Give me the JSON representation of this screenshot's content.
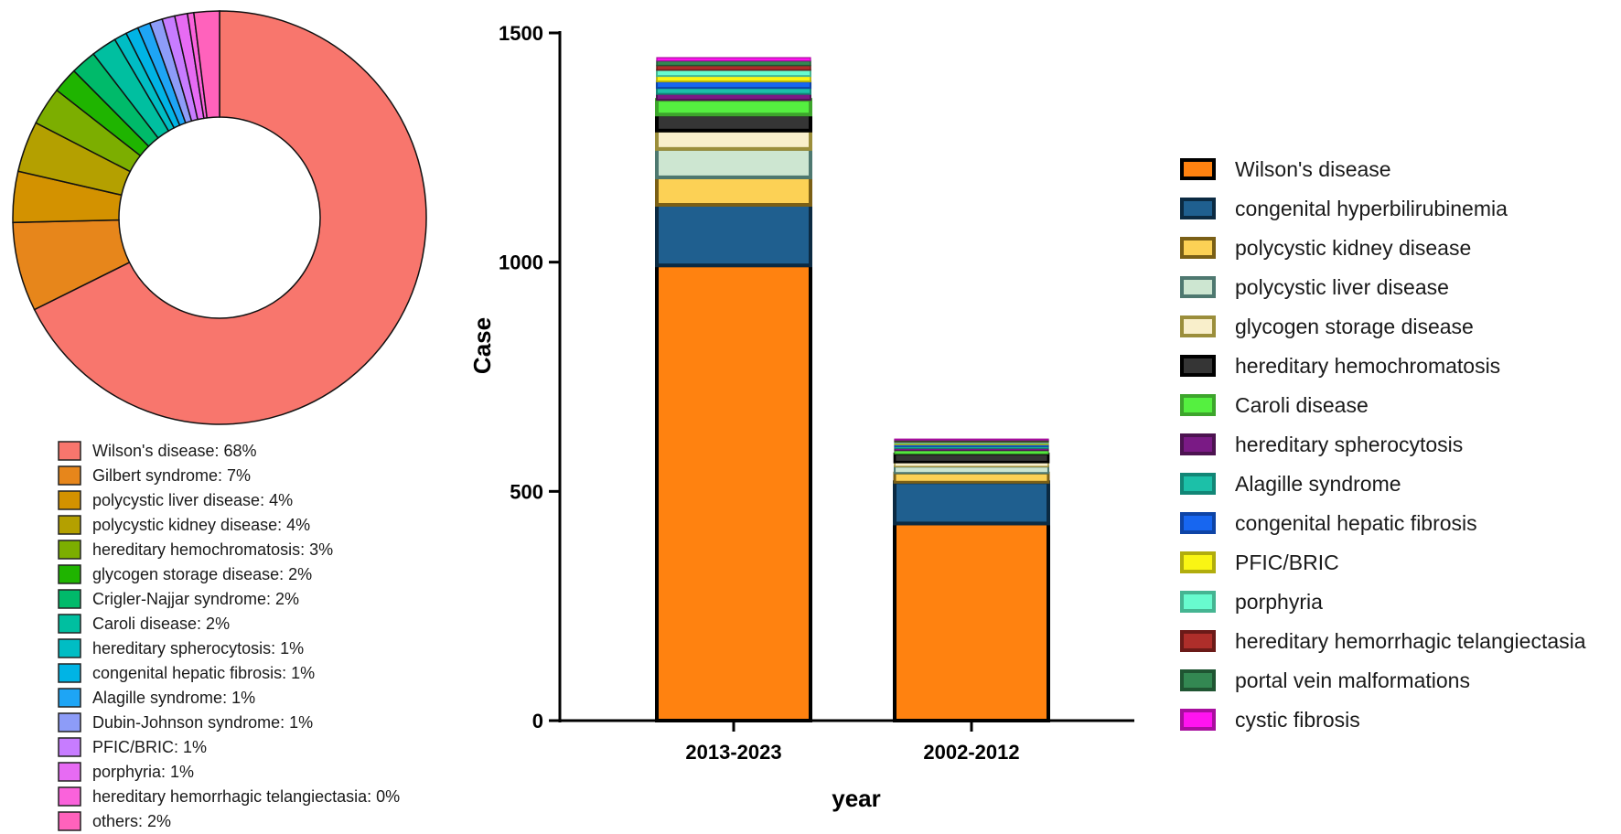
{
  "chart_data": [
    {
      "type": "pie",
      "donut": true,
      "slices": [
        {
          "label": "Wilson's disease: 68%",
          "value": 68,
          "color": "#F8766D"
        },
        {
          "label": "Gilbert syndrome: 7%",
          "value": 7,
          "color": "#E7861B"
        },
        {
          "label": "polycystic liver disease: 4%",
          "value": 4,
          "color": "#D39200"
        },
        {
          "label": "polycystic kidney disease: 4%",
          "value": 4,
          "color": "#B4A000"
        },
        {
          "label": "hereditary hemochromatosis: 3%",
          "value": 3,
          "color": "#7CAE00"
        },
        {
          "label": "glycogen storage disease: 2%",
          "value": 2,
          "color": "#1FB400"
        },
        {
          "label": "Crigler-Najjar syndrome: 2%",
          "value": 2,
          "color": "#00BA6A"
        },
        {
          "label": "Caroli disease: 2%",
          "value": 2,
          "color": "#00BFA0"
        },
        {
          "label": "hereditary spherocytosis: 1%",
          "value": 1,
          "color": "#00BDC4"
        },
        {
          "label": "congenital hepatic fibrosis: 1%",
          "value": 1,
          "color": "#00B4E5"
        },
        {
          "label": "Alagille syndrome: 1%",
          "value": 1,
          "color": "#1EA5F5"
        },
        {
          "label": "Dubin-Johnson syndrome: 1%",
          "value": 1,
          "color": "#8D9CF8"
        },
        {
          "label": "PFIC/BRIC: 1%",
          "value": 1,
          "color": "#C77CFF"
        },
        {
          "label": "porphyria: 1%",
          "value": 1,
          "color": "#E76BF3"
        },
        {
          "label": "hereditary hemorrhagic telangiectasia: 0%",
          "value": 0.5,
          "color": "#FA62DB"
        },
        {
          "label": "others: 2%",
          "value": 2,
          "color": "#FF62BC"
        }
      ]
    },
    {
      "type": "bar",
      "stacked": true,
      "categories": [
        "2013-2023",
        "2002-2012"
      ],
      "xlabel": "year",
      "ylabel": "Case",
      "ylim": [
        0,
        1500
      ],
      "yticks": [
        0,
        500,
        1000,
        1500
      ],
      "series": [
        {
          "name": "Wilson's disease",
          "values": [
            993,
            430
          ],
          "color": "#FF8210",
          "edge": "#000000"
        },
        {
          "name": "congenital hyperbilirubinemia",
          "values": [
            132,
            90
          ],
          "color": "#1F5F8F",
          "edge": "#0B2A42"
        },
        {
          "name": "polycystic kidney disease",
          "values": [
            60,
            20
          ],
          "color": "#FCD155",
          "edge": "#7A5F16"
        },
        {
          "name": "polycystic liver disease",
          "values": [
            62,
            14
          ],
          "color": "#CDE6D1",
          "edge": "#4E7870"
        },
        {
          "name": "glycogen storage disease",
          "values": [
            40,
            10
          ],
          "color": "#F9EFCB",
          "edge": "#9B8E3B"
        },
        {
          "name": "hereditary hemochromatosis",
          "values": [
            35,
            18
          ],
          "color": "#353535",
          "edge": "#000000"
        },
        {
          "name": "Caroli disease",
          "values": [
            32,
            7
          ],
          "color": "#55F040",
          "edge": "#3DA52C"
        },
        {
          "name": "hereditary spherocytosis",
          "values": [
            13,
            5
          ],
          "color": "#7A1A85",
          "edge": "#4C1350"
        },
        {
          "name": "Alagille syndrome",
          "values": [
            13,
            4
          ],
          "color": "#1CC0A8",
          "edge": "#128676"
        },
        {
          "name": "congenital hepatic fibrosis",
          "values": [
            14,
            4
          ],
          "color": "#1766F0",
          "edge": "#0E44A6"
        },
        {
          "name": "PFIC/BRIC",
          "values": [
            12,
            3
          ],
          "color": "#F9F514",
          "edge": "#B1AD0D"
        },
        {
          "name": "porphyria",
          "values": [
            13,
            3
          ],
          "color": "#68FBCE",
          "edge": "#45B592"
        },
        {
          "name": "hereditary hemorrhagic telangiectasia",
          "values": [
            10,
            2
          ],
          "color": "#AE2E2A",
          "edge": "#6B1A18"
        },
        {
          "name": "portal vein malformations",
          "values": [
            10,
            2
          ],
          "color": "#338852",
          "edge": "#1F5532"
        },
        {
          "name": "cystic fibrosis",
          "values": [
            7,
            2
          ],
          "color": "#FF14F0",
          "edge": "#A80E9E"
        }
      ]
    }
  ]
}
